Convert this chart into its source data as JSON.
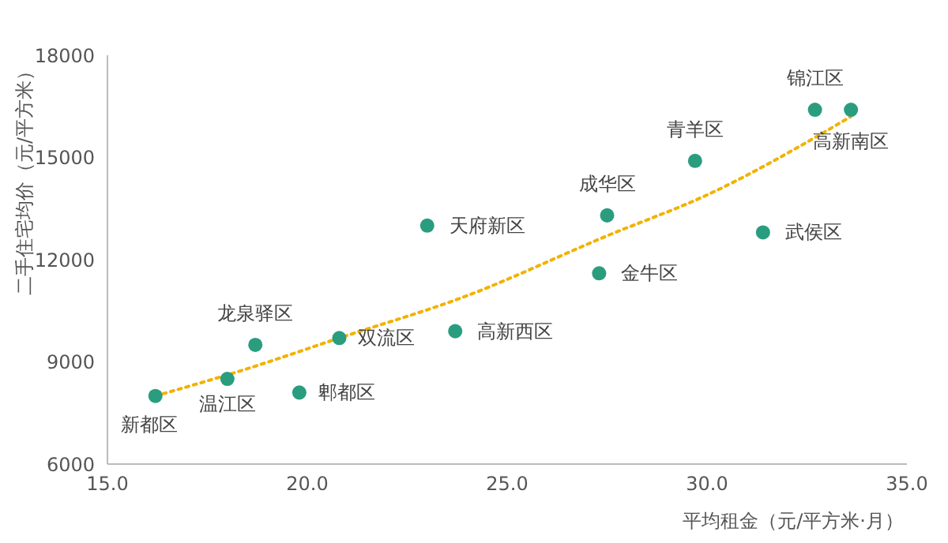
{
  "chart_data": {
    "type": "scatter",
    "xlabel": "平均租金（元/平方米·月）",
    "ylabel": "二手住宅均价（元/平方米）",
    "xlim": [
      15,
      35
    ],
    "xticks": [
      {
        "value": 15,
        "label": "15.0"
      },
      {
        "value": 20,
        "label": "20.0"
      },
      {
        "value": 25,
        "label": "25.0"
      },
      {
        "value": 30,
        "label": "30.0"
      },
      {
        "value": 35,
        "label": "35.0"
      }
    ],
    "ylim": [
      6000,
      18000
    ],
    "yticks": [
      6000,
      9000,
      12000,
      15000,
      18000
    ],
    "grid": false,
    "legend": false,
    "marker": "circle",
    "series": [
      {
        "color": "#2a9d7f",
        "x": [
          16.2,
          18.0,
          18.7,
          19.8,
          20.8,
          23.0,
          23.7,
          27.3,
          27.5,
          29.7,
          31.4,
          32.7,
          33.6
        ],
        "values": [
          8000,
          8500,
          9500,
          8100,
          9700,
          13000,
          9900,
          11600,
          13300,
          14900,
          12800,
          16400,
          16400
        ]
      },
      {
        "type": "line",
        "color": "#f2b200",
        "line_style": "dotted",
        "marker": "none",
        "x": [
          16.2,
          18.5,
          20.8,
          23.9,
          27.5,
          30.0,
          33.6
        ],
        "values": [
          8000,
          8800,
          9700,
          10900,
          12700,
          13900,
          16200
        ]
      }
    ],
    "annotations": [
      {
        "text": "新都区",
        "x": 16.2,
        "y": 8000
      },
      {
        "text": "温江区",
        "x": 18.0,
        "y": 8500
      },
      {
        "text": "龙泉驿区",
        "x": 18.7,
        "y": 9500
      },
      {
        "text": "郫都区",
        "x": 19.8,
        "y": 8100
      },
      {
        "text": "双流区",
        "x": 20.8,
        "y": 9700
      },
      {
        "text": "天府新区",
        "x": 23.0,
        "y": 13000
      },
      {
        "text": "高新西区",
        "x": 23.7,
        "y": 9900
      },
      {
        "text": "金牛区",
        "x": 27.3,
        "y": 11600
      },
      {
        "text": "成华区",
        "x": 27.5,
        "y": 13300
      },
      {
        "text": "青羊区",
        "x": 29.7,
        "y": 14900
      },
      {
        "text": "武侯区",
        "x": 31.4,
        "y": 12800
      },
      {
        "text": "锦江区",
        "x": 32.7,
        "y": 16400
      },
      {
        "text": "高新南区",
        "x": 33.6,
        "y": 16400
      }
    ]
  }
}
